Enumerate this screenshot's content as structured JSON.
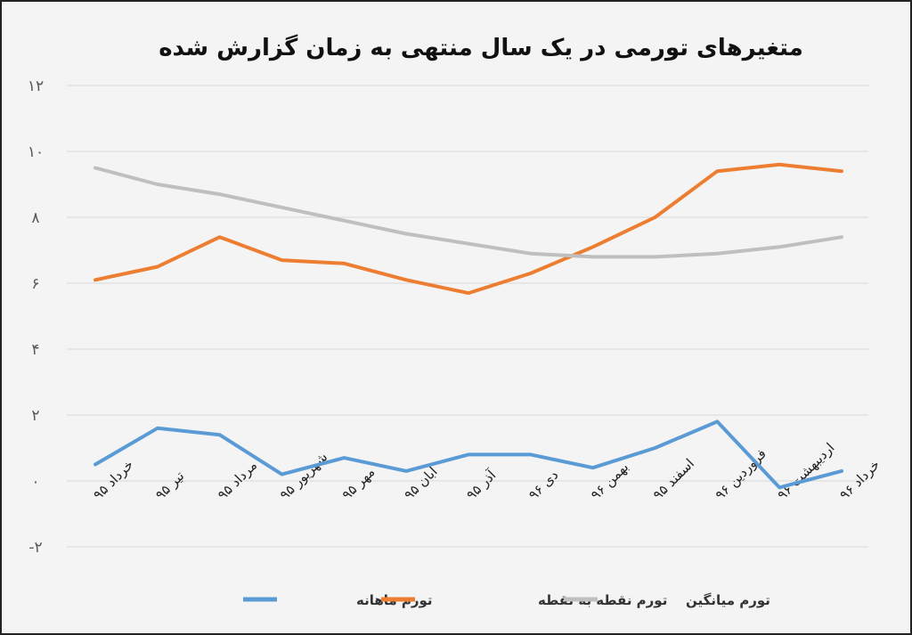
{
  "chart_data": {
    "type": "line",
    "title": "متغیرهای تورمی در یک سال منتهی به زمان گزارش شده",
    "xlabel": "",
    "ylabel": "",
    "ylim": [
      -2,
      12
    ],
    "yticks": [
      12,
      10,
      8,
      6,
      4,
      2,
      0,
      -2
    ],
    "ytick_labels": [
      "۱۲",
      "۱۰",
      "۸",
      "۶",
      "۴",
      "۲",
      "۰",
      "-۲"
    ],
    "grid": true,
    "legend_position": "bottom",
    "categories": [
      "خرداد ۹۵",
      "تیر ۹۵",
      "مرداد ۹۵",
      "شهریور ۹۵",
      "مهر ۹۵",
      "آبان ۹۵",
      "آذر ۹۵",
      "دی ۹۶",
      "بهمن ۹۶",
      "اسفند ۹۵",
      "فروردین ۹۶",
      "اردیبهشت ۹۶",
      "خرداد ۹۶"
    ],
    "series": [
      {
        "name": "تورم ماهانه",
        "color": "#5b9bd5",
        "values": [
          0.5,
          1.6,
          1.4,
          0.2,
          0.7,
          0.3,
          0.8,
          0.8,
          0.4,
          1.0,
          1.8,
          -0.2,
          0.3
        ]
      },
      {
        "name": "تورم نقطه به نقطه",
        "color": "#ed7d31",
        "values": [
          6.1,
          6.5,
          7.4,
          6.7,
          6.6,
          6.1,
          5.7,
          6.3,
          7.1,
          8.0,
          9.4,
          9.6,
          9.4
        ]
      },
      {
        "name": "تورم میانگین",
        "color": "#bfbfbf",
        "values": [
          9.5,
          9.0,
          8.7,
          8.3,
          7.9,
          7.5,
          7.2,
          6.9,
          6.8,
          6.8,
          6.9,
          7.1,
          7.4
        ]
      }
    ]
  }
}
